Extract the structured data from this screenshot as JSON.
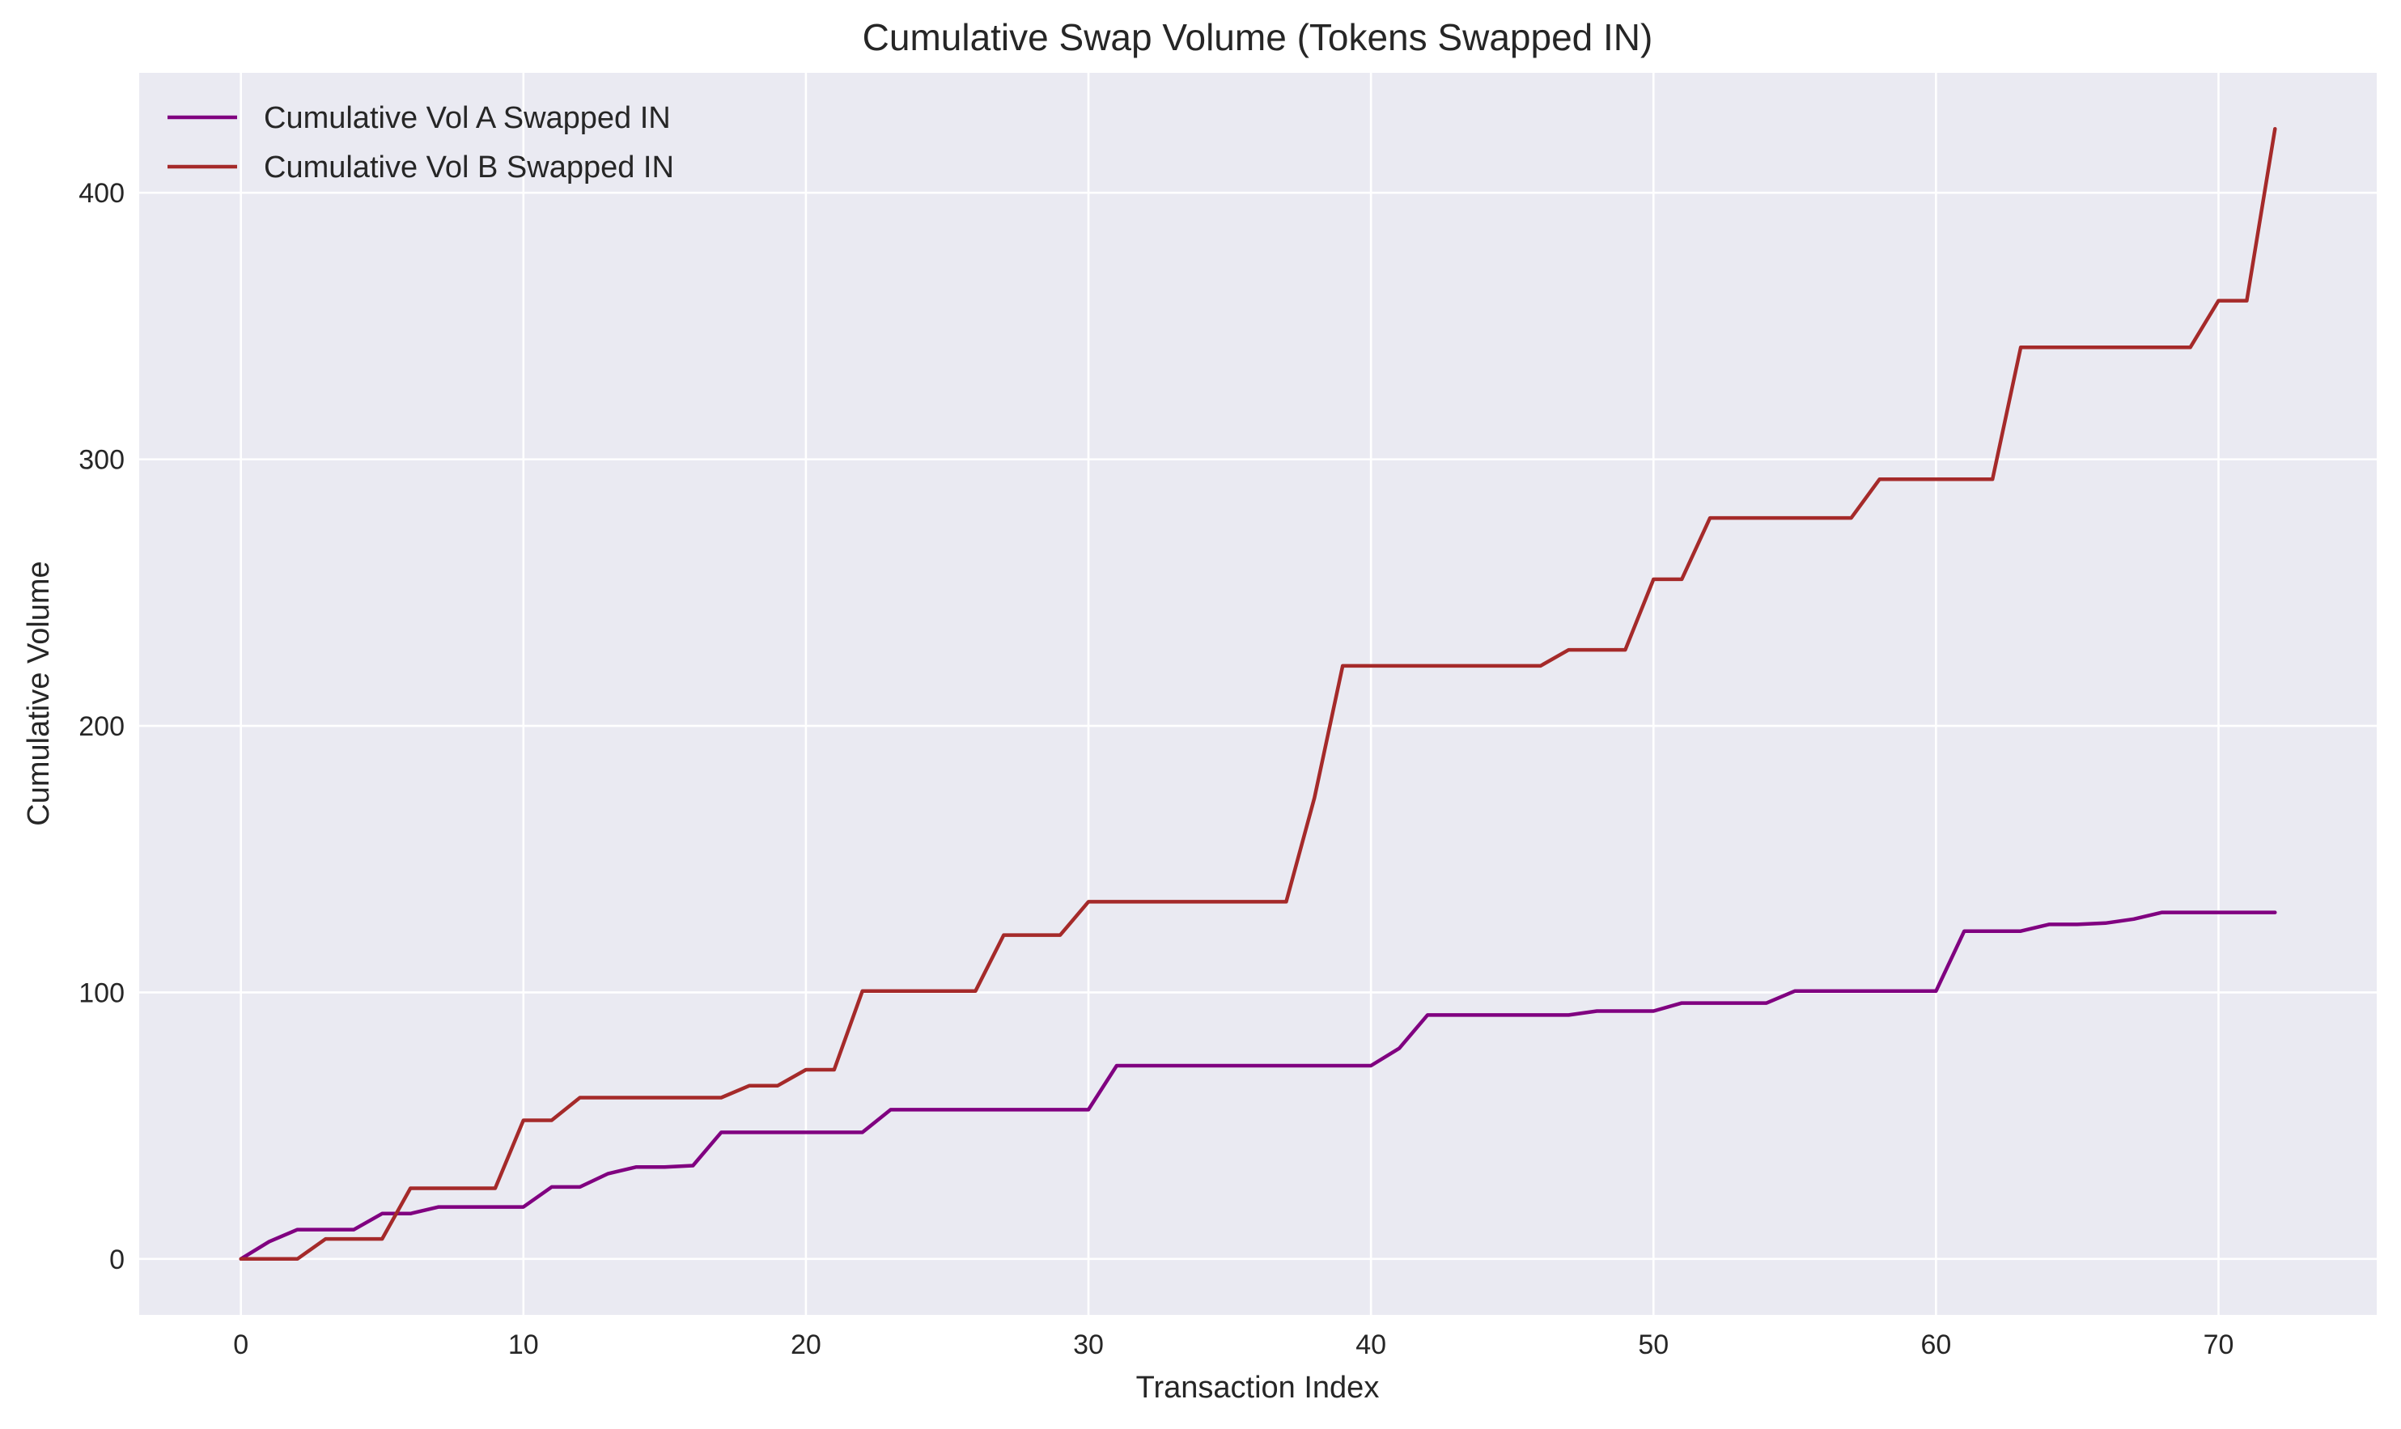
{
  "chart_data": {
    "type": "line",
    "title": "Cumulative Swap Volume (Tokens Swapped IN)",
    "xlabel": "Transaction Index",
    "ylabel": "Cumulative Volume",
    "xlim": [
      -3.6,
      75.6
    ],
    "ylim": [
      -21,
      445
    ],
    "xticks": [
      0,
      10,
      20,
      30,
      40,
      50,
      60,
      70
    ],
    "yticks": [
      0,
      100,
      200,
      300,
      400
    ],
    "grid": true,
    "legend_position": "upper-left",
    "background_color": "#eaeaf2",
    "grid_color": "#ffffff",
    "x": [
      0,
      1,
      2,
      3,
      4,
      5,
      6,
      7,
      8,
      9,
      10,
      11,
      12,
      13,
      14,
      15,
      16,
      17,
      18,
      19,
      20,
      21,
      22,
      23,
      24,
      25,
      26,
      27,
      28,
      29,
      30,
      31,
      32,
      33,
      34,
      35,
      36,
      37,
      38,
      39,
      40,
      41,
      42,
      43,
      44,
      45,
      46,
      47,
      48,
      49,
      50,
      51,
      52,
      53,
      54,
      55,
      56,
      57,
      58,
      59,
      60,
      61,
      62,
      63,
      64,
      65,
      66,
      67,
      68,
      69,
      70,
      71,
      72
    ],
    "series": [
      {
        "name": "Cumulative Vol A Swapped IN",
        "color": "#800080",
        "values": [
          0,
          6.5,
          11,
          11,
          11,
          17,
          17,
          19.5,
          19.5,
          19.5,
          19.5,
          27,
          27,
          32,
          34.5,
          34.5,
          35,
          47.5,
          47.5,
          47.5,
          47.5,
          47.5,
          47.5,
          56,
          56,
          56,
          56,
          56,
          56,
          56,
          56,
          72.5,
          72.5,
          72.5,
          72.5,
          72.5,
          72.5,
          72.5,
          72.5,
          72.5,
          72.5,
          79,
          91.5,
          91.5,
          91.5,
          91.5,
          91.5,
          91.5,
          93,
          93,
          93,
          96,
          96,
          96,
          96,
          100.5,
          100.5,
          100.5,
          100.5,
          100.5,
          100.5,
          123,
          123,
          123,
          125.5,
          125.5,
          126,
          127.5,
          130,
          130,
          130,
          130,
          130
        ]
      },
      {
        "name": "Cumulative Vol B Swapped IN",
        "color": "#a52a2a",
        "values": [
          0,
          0,
          0,
          7.5,
          7.5,
          7.5,
          26.5,
          26.5,
          26.5,
          26.5,
          52,
          52,
          60.5,
          60.5,
          60.5,
          60.5,
          60.5,
          60.5,
          65,
          65,
          71,
          71,
          100.5,
          100.5,
          100.5,
          100.5,
          100.5,
          121.5,
          121.5,
          121.5,
          134,
          134,
          134,
          134,
          134,
          134,
          134,
          134,
          173,
          222.5,
          222.5,
          222.5,
          222.5,
          222.5,
          222.5,
          222.5,
          222.5,
          228.5,
          228.5,
          228.5,
          255,
          255,
          278,
          278,
          278,
          278,
          278,
          278,
          292.5,
          292.5,
          292.5,
          292.5,
          292.5,
          342,
          342,
          342,
          342,
          342,
          342,
          342,
          359.5,
          359.5,
          424
        ]
      }
    ]
  }
}
